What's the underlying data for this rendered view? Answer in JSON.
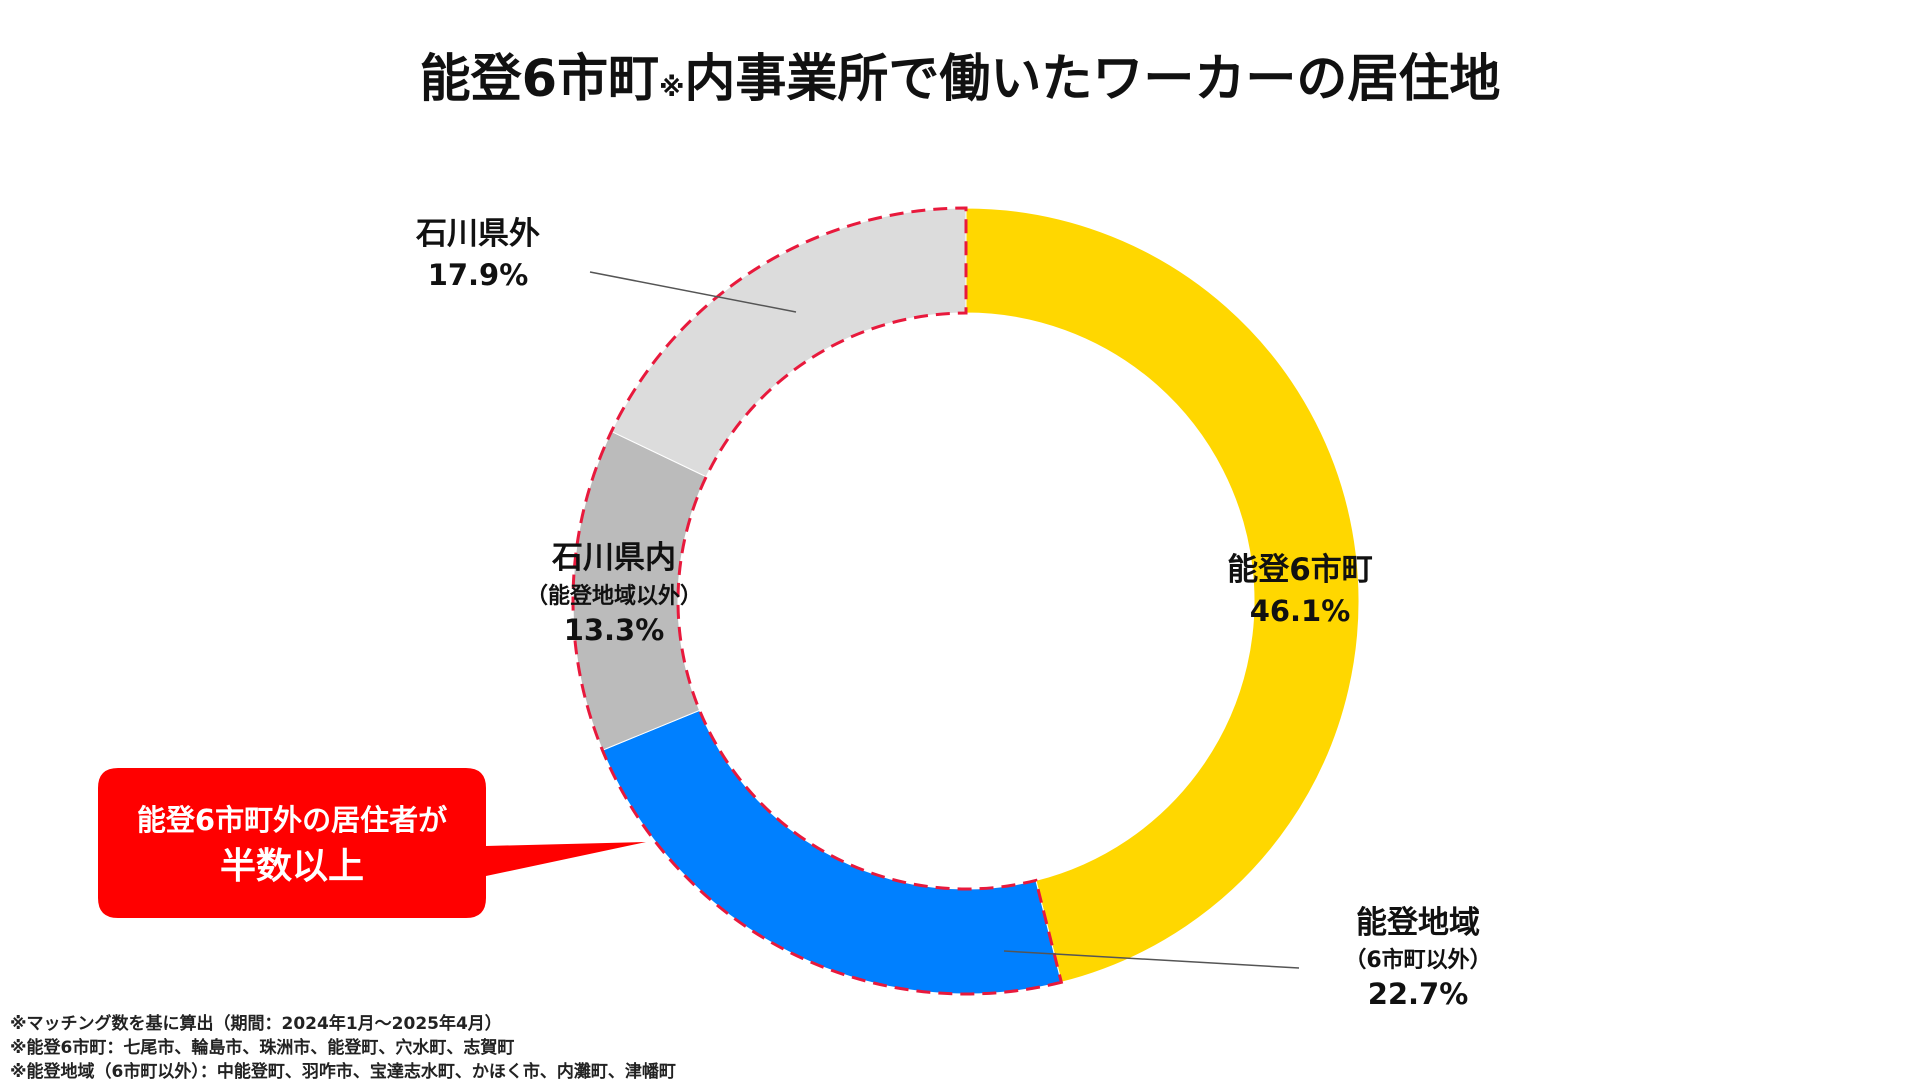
{
  "title": {
    "main_part1": "能登6市町",
    "mark": "※",
    "main_part2": "内事業所で働いたワーカーの居住地"
  },
  "chart_data": {
    "type": "pie",
    "title": "能登6市町※内事業所で働いたワーカーの居住地",
    "unit": "%",
    "slices": [
      {
        "name": "能登6市町",
        "note": "",
        "value": 46.1,
        "value_label": "46.1%",
        "color": "#FFD700",
        "highlight": false
      },
      {
        "name": "能登地域",
        "note": "（6市町以外）",
        "value": 22.7,
        "value_label": "22.7%",
        "color": "#0080FF",
        "highlight": true
      },
      {
        "name": "石川県内",
        "note": "（能登地域以外）",
        "value": 13.3,
        "value_label": "13.3%",
        "color": "#BBBBBB",
        "highlight": true
      },
      {
        "name": "石川県外",
        "note": "",
        "value": 17.9,
        "value_label": "17.9%",
        "color": "#DCDCDC",
        "highlight": true
      }
    ],
    "highlight_outline_color": "#E8193C",
    "donut": true,
    "start": "top",
    "direction": "clockwise"
  },
  "callout": {
    "line1": "能登6市町外の居住者が",
    "line2": "半数以上",
    "color": "#FF0000"
  },
  "footnotes": [
    "※マッチング数を基に算出（期間：2024年1月〜2025年4月）",
    "※能登6市町：七尾市、輪島市、珠洲市、能登町、穴水町、志賀町",
    "※能登地域（6市町以外）：中能登町、羽咋市、宝達志水町、かほく市、内灘町、津幡町"
  ]
}
